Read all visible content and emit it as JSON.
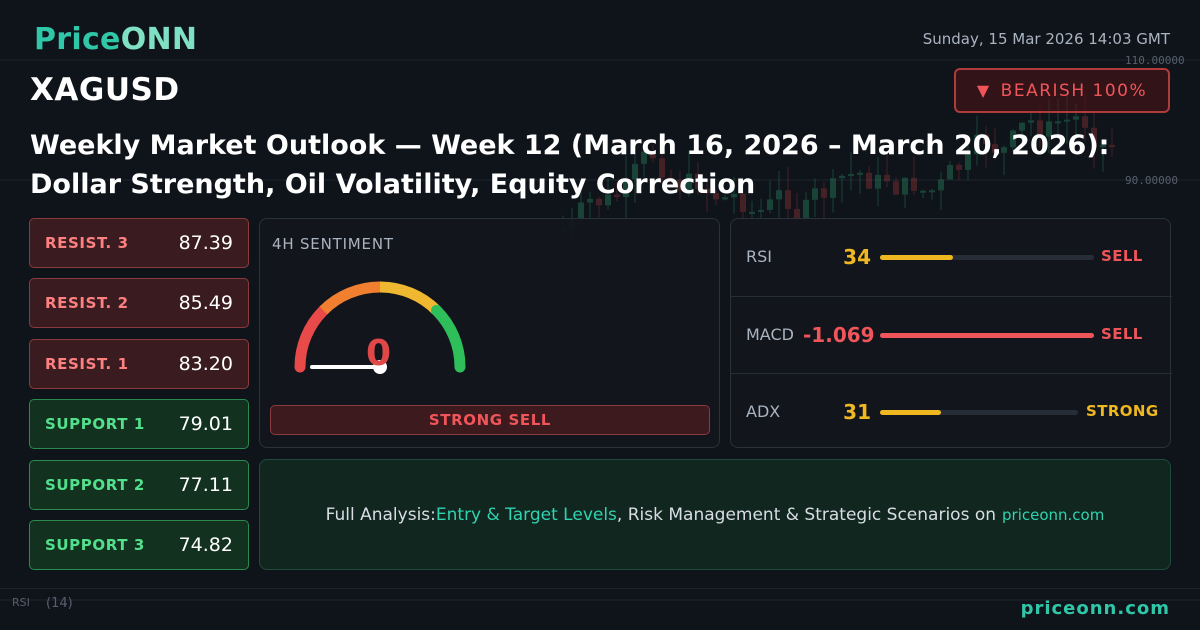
{
  "brand": {
    "part1": "Price",
    "part2": "ONN"
  },
  "datetime": "Sunday, 15 Mar 2026 14:03 GMT",
  "symbol": "XAGUSD",
  "bias": {
    "arrow": "▼",
    "label": "BEARISH 100%"
  },
  "headline": "Weekly Market Outlook — Week 12 (March 16, 2026 – March 20, 2026): Dollar Strength, Oil Volatility, Equity Correction",
  "levels": [
    {
      "label": "RESIST. 3",
      "value": "87.39",
      "kind": "resistance"
    },
    {
      "label": "RESIST. 2",
      "value": "85.49",
      "kind": "resistance"
    },
    {
      "label": "RESIST. 1",
      "value": "83.20",
      "kind": "resistance"
    },
    {
      "label": "SUPPORT 1",
      "value": "79.01",
      "kind": "support"
    },
    {
      "label": "SUPPORT 2",
      "value": "77.11",
      "kind": "support"
    },
    {
      "label": "SUPPORT 3",
      "value": "74.82",
      "kind": "support"
    }
  ],
  "sentiment": {
    "title": "4H SENTIMENT",
    "value": "0",
    "gauge_level": 0,
    "signal": "STRONG SELL",
    "gauge_colors": [
      "#e84a4a",
      "#f08030",
      "#f0b830",
      "#2fbf5a"
    ]
  },
  "indicators": [
    {
      "name": "RSI",
      "value": "34",
      "level": 0.34,
      "signal": "SELL",
      "value_color": "#f0b820",
      "bar_color": "#f0b820",
      "signal_color": "#f0555a"
    },
    {
      "name": "MACD",
      "value": "-1.069",
      "level": 1.0,
      "signal": "SELL",
      "value_color": "#f0555a",
      "bar_color": "#f0555a",
      "signal_color": "#f0555a"
    },
    {
      "name": "ADX",
      "value": "31",
      "level": 0.31,
      "signal": "STRONG",
      "value_color": "#f0b820",
      "bar_color": "#f0b820",
      "signal_color": "#f0b820"
    }
  ],
  "cta": {
    "prefix": "Full Analysis: ",
    "highlight": "Entry & Target Levels",
    "suffix": ", Risk Management & Strategic Scenarios on",
    "domain": "priceonn.com"
  },
  "background_chart": {
    "price_labels": [
      "110.00000",
      "90.00000"
    ],
    "indicator_label": "RSI",
    "indicator_period": "(14)"
  },
  "footer": {
    "domain": "priceonn.com"
  },
  "colors": {
    "accent": "#2fc7a8",
    "bearish": "#f0555a",
    "bullish": "#53e08c",
    "warning": "#f0b820"
  }
}
